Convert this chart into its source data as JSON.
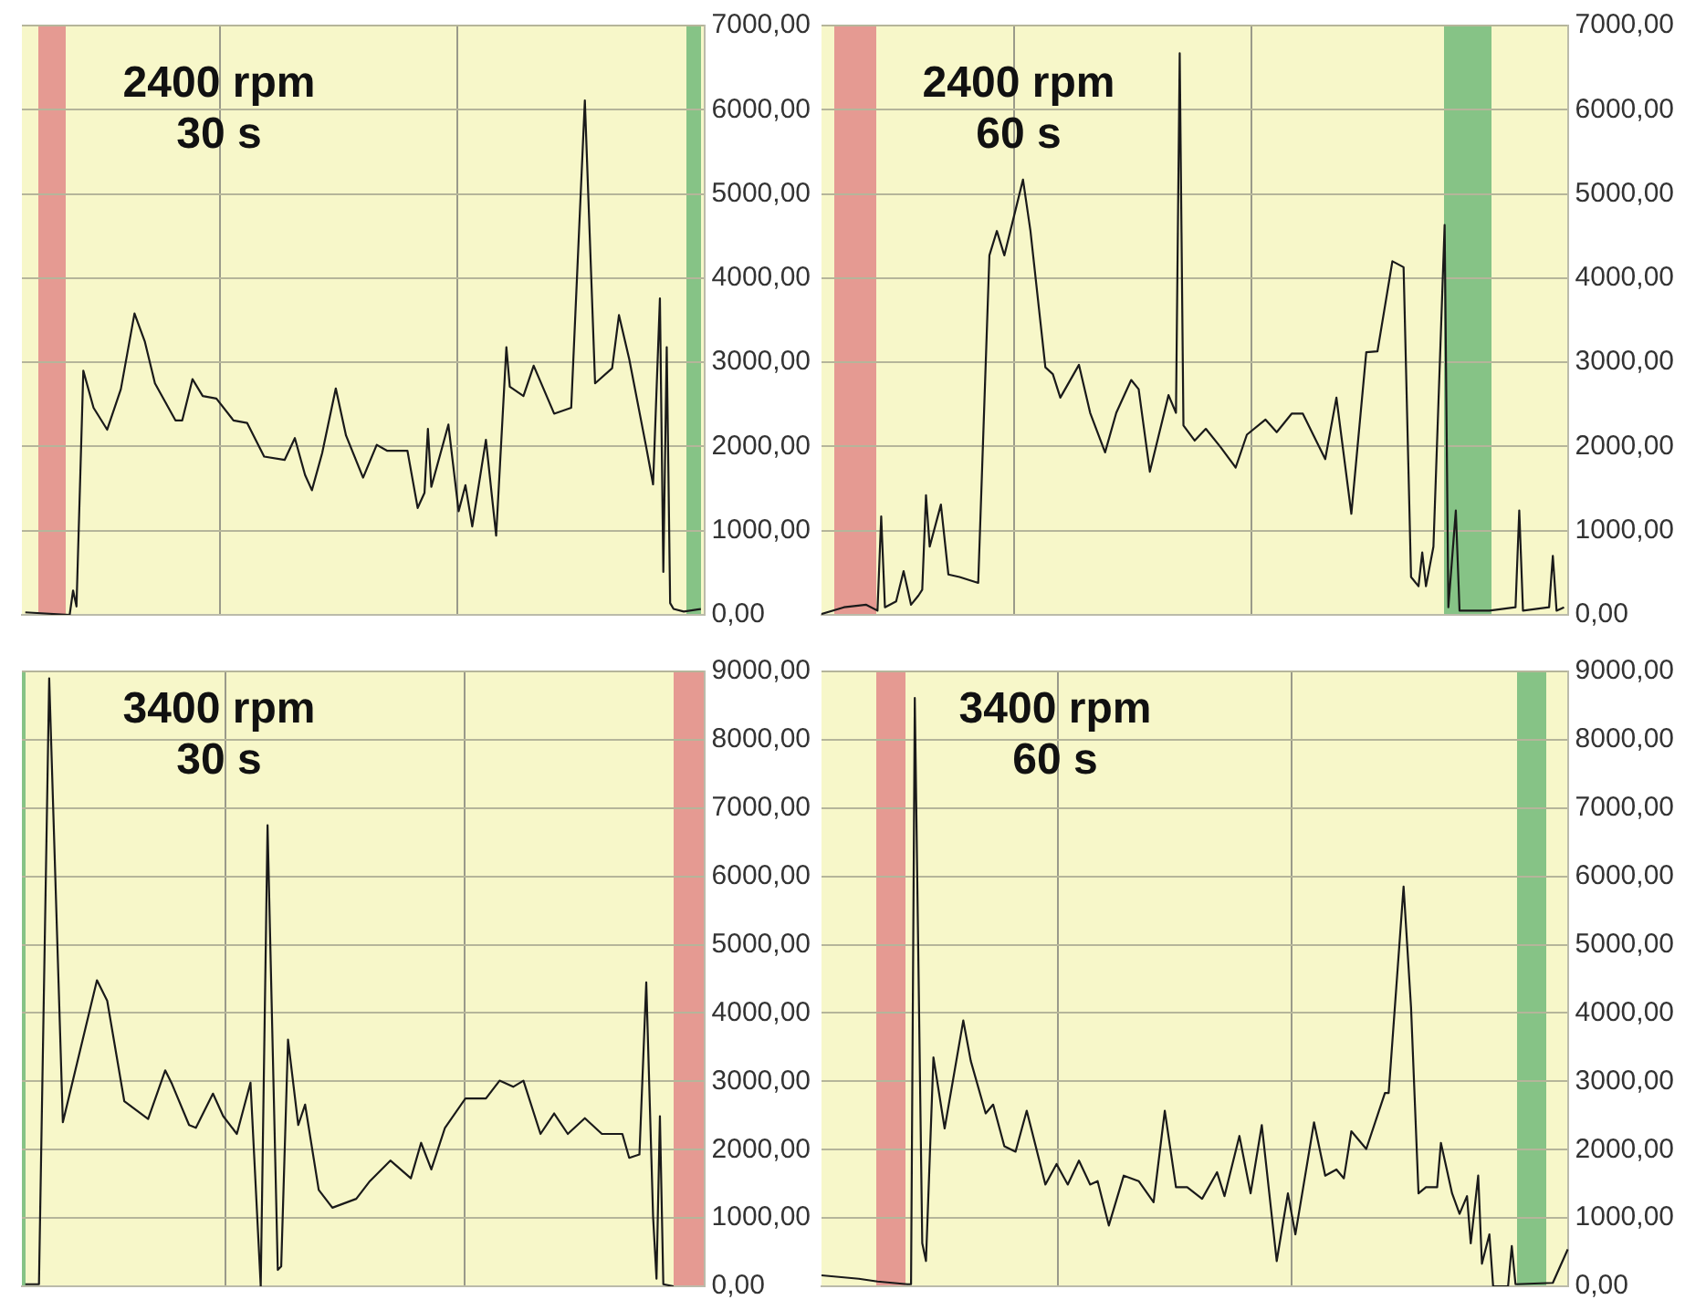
{
  "chart_data": [
    {
      "type": "line",
      "title": "2400 rpm\n30 s",
      "color": "#1a1a1a",
      "grid": "y",
      "tick_labels": "y",
      "ylim": [
        0,
        7000
      ],
      "yticks": [
        {
          "value": 0,
          "label": "0,00"
        },
        {
          "value": 1000,
          "label": "1000,00"
        },
        {
          "value": 2000,
          "label": "2000,00"
        },
        {
          "value": 3000,
          "label": "3000,00"
        },
        {
          "value": 4000,
          "label": "4000,00"
        },
        {
          "value": 5000,
          "label": "5000,00"
        },
        {
          "value": 6000,
          "label": "6000,00"
        },
        {
          "value": 7000,
          "label": "7000,00"
        }
      ],
      "categories": [
        null,
        null,
        null,
        null,
        null,
        null,
        null,
        null,
        null,
        null,
        null,
        null,
        null,
        null,
        null,
        null,
        null,
        null,
        null,
        null,
        null,
        null,
        null,
        null,
        null,
        null,
        null,
        null,
        null,
        null,
        null,
        null,
        null,
        null,
        null,
        null,
        null,
        null,
        null,
        null,
        null,
        null,
        null,
        null,
        null,
        null,
        null,
        null,
        null,
        null,
        null,
        null,
        null,
        null,
        null,
        null,
        null,
        null,
        null,
        null,
        null,
        null,
        null,
        null,
        null,
        null,
        null,
        null,
        null,
        null,
        null,
        null,
        null,
        null,
        null,
        null,
        null,
        null,
        null,
        null,
        null,
        null,
        null,
        null,
        null,
        null,
        null,
        null,
        null,
        null,
        null,
        null,
        null,
        null,
        null,
        null,
        null,
        null,
        null,
        null,
        null,
        null,
        null,
        null,
        null,
        null,
        null,
        null,
        null,
        null,
        null,
        null,
        null,
        null,
        null,
        null,
        null,
        null,
        null,
        null,
        null,
        null,
        null,
        null,
        null,
        null,
        null,
        null,
        null,
        null,
        null,
        null,
        null,
        null,
        null,
        null,
        null,
        null,
        null,
        null,
        null,
        null,
        null,
        null,
        null,
        null,
        null,
        null,
        null,
        null,
        null,
        null,
        null,
        null,
        null,
        null,
        null,
        null,
        null,
        null,
        null,
        null,
        null,
        null,
        null,
        null,
        null,
        null,
        null,
        null,
        null,
        null,
        null,
        null,
        null,
        null,
        null,
        null,
        null,
        null,
        null,
        null,
        null,
        null,
        null,
        null,
        null,
        null,
        null,
        null,
        null,
        null,
        null,
        null,
        null,
        null,
        null,
        null,
        null,
        null,
        null
      ],
      "values": [
        null,
        30,
        null,
        null,
        null,
        null,
        null,
        null,
        null,
        null,
        null,
        null,
        null,
        null,
        0,
        290,
        100,
        null,
        2900,
        null,
        null,
        2460,
        null,
        null,
        null,
        2200,
        null,
        null,
        null,
        2680,
        null,
        null,
        null,
        3580,
        null,
        null,
        3250,
        null,
        null,
        2750,
        null,
        null,
        2530,
        null,
        null,
        2310,
        null,
        2310,
        null,
        null,
        2800,
        null,
        null,
        2600,
        null,
        null,
        null,
        2570,
        null,
        null,
        null,
        null,
        2310,
        null,
        null,
        null,
        2280,
        null,
        null,
        null,
        null,
        1880,
        null,
        null,
        null,
        null,
        null,
        1840,
        null,
        null,
        2100,
        null,
        null,
        1660,
        null,
        1480,
        null,
        null,
        1920,
        null,
        null,
        null,
        2690,
        null,
        null,
        2130,
        null,
        null,
        null,
        null,
        1630,
        null,
        null,
        null,
        2020,
        null,
        null,
        1950,
        null,
        null,
        null,
        null,
        null,
        1950,
        null,
        null,
        1270,
        null,
        1450,
        2210,
        1520,
        null,
        null,
        null,
        null,
        2260,
        null,
        null,
        1230,
        null,
        1540,
        null,
        1050,
        null,
        null,
        null,
        2080,
        null,
        null,
        940,
        null,
        null,
        3180,
        2710,
        null,
        null,
        null,
        2600,
        null,
        null,
        2960,
        null,
        null,
        null,
        null,
        null,
        2390,
        null,
        null,
        null,
        null,
        2460,
        null,
        null,
        null,
        6110,
        null,
        null,
        2750,
        null,
        null,
        null,
        null,
        2930,
        null,
        3560,
        null,
        null,
        3040,
        null,
        null,
        null,
        null,
        1990,
        null,
        1550,
        null,
        3760,
        510,
        3180,
        140,
        70,
        null,
        null,
        40,
        null,
        null,
        null,
        null,
        70,
        null
      ]
    },
    {
      "type": "line",
      "title": "2400 rpm\n60 s",
      "color": "#1a1a1a",
      "grid": "y",
      "tick_labels": "y",
      "ylim": [
        0,
        7000
      ],
      "yticks": [
        {
          "value": 0,
          "label": "0,00"
        },
        {
          "value": 1000,
          "label": "1000,00"
        },
        {
          "value": 2000,
          "label": "2000,00"
        },
        {
          "value": 3000,
          "label": "3000,00"
        },
        {
          "value": 4000,
          "label": "4000,00"
        },
        {
          "value": 5000,
          "label": "5000,00"
        },
        {
          "value": 6000,
          "label": "6000,00"
        },
        {
          "value": 7000,
          "label": "7000,00"
        }
      ],
      "categories": [
        null,
        null,
        null,
        null,
        null,
        null,
        null,
        null,
        null,
        null,
        null,
        null,
        null,
        null,
        null,
        null,
        null,
        null,
        null,
        null,
        null,
        null,
        null,
        null,
        null,
        null,
        null,
        null,
        null,
        null,
        null,
        null,
        null,
        null,
        null,
        null,
        null,
        null,
        null,
        null,
        null,
        null,
        null,
        null,
        null,
        null,
        null,
        null,
        null,
        null,
        null,
        null,
        null,
        null,
        null,
        null,
        null,
        null,
        null,
        null,
        null,
        null,
        null,
        null,
        null,
        null,
        null,
        null,
        null,
        null,
        null,
        null,
        null,
        null,
        null,
        null,
        null,
        null,
        null,
        null,
        null,
        null,
        null,
        null,
        null,
        null,
        null,
        null,
        null,
        null,
        null,
        null,
        null,
        null,
        null,
        null,
        null,
        null,
        null,
        null,
        null,
        null,
        null,
        null,
        null,
        null,
        null,
        null,
        null,
        null,
        null,
        null,
        null,
        null,
        null,
        null,
        null,
        null,
        null,
        null,
        null,
        null,
        null,
        null,
        null,
        null,
        null,
        null,
        null,
        null,
        null,
        null,
        null,
        null,
        null,
        null,
        null,
        null,
        null,
        null,
        null,
        null,
        null,
        null,
        null,
        null,
        null,
        null,
        null,
        null,
        null,
        null,
        null,
        null,
        null,
        null,
        null,
        null,
        null,
        null,
        null,
        null,
        null,
        null,
        null,
        null,
        null,
        null,
        null,
        null,
        null,
        null,
        null,
        null,
        null,
        null,
        null,
        null,
        null,
        null,
        null,
        null,
        null,
        null,
        null,
        null,
        null,
        null,
        null,
        null,
        null,
        null,
        null,
        null,
        null,
        null,
        null,
        null,
        null,
        null,
        null
      ],
      "values": [
        10,
        null,
        null,
        null,
        null,
        null,
        90,
        null,
        null,
        null,
        null,
        null,
        120,
        null,
        null,
        50,
        1170,
        90,
        null,
        null,
        160,
        null,
        520,
        null,
        120,
        null,
        230,
        300,
        1420,
        810,
        null,
        null,
        1310,
        null,
        480,
        null,
        null,
        450,
        null,
        null,
        null,
        null,
        380,
        null,
        null,
        4270,
        null,
        4560,
        null,
        4270,
        null,
        null,
        null,
        null,
        5170,
        null,
        4560,
        null,
        null,
        null,
        2940,
        null,
        2860,
        null,
        2580,
        null,
        null,
        null,
        null,
        2970,
        null,
        null,
        2400,
        null,
        null,
        null,
        1930,
        null,
        null,
        2400,
        null,
        null,
        null,
        2790,
        null,
        2680,
        null,
        null,
        1700,
        null,
        null,
        null,
        null,
        2610,
        null,
        2400,
        6670,
        2250,
        null,
        null,
        2070,
        null,
        null,
        2210,
        null,
        null,
        null,
        1990,
        null,
        null,
        null,
        1750,
        null,
        null,
        2140,
        null,
        null,
        null,
        null,
        2320,
        null,
        null,
        2170,
        null,
        null,
        null,
        2390,
        null,
        null,
        2390,
        null,
        null,
        null,
        null,
        null,
        1850,
        null,
        null,
        2580,
        null,
        null,
        null,
        1200,
        null,
        null,
        null,
        3120,
        null,
        null,
        3130,
        null,
        null,
        null,
        4200,
        null,
        null,
        4130,
        null,
        450,
        null,
        340,
        740,
        340,
        null,
        810,
        null,
        null,
        4630,
        90,
        null,
        1240,
        50,
        null,
        null,
        null,
        null,
        null,
        null,
        null,
        50,
        null,
        null,
        null,
        null,
        null,
        null,
        90,
        1240,
        50,
        null,
        null,
        null,
        null,
        null,
        null,
        90,
        700,
        50,
        null,
        90,
        null
      ]
    },
    {
      "type": "line",
      "title": "3400 rpm\n30 s",
      "color": "#1a1a1a",
      "grid": "y",
      "tick_labels": "y",
      "ylim": [
        0,
        9000
      ],
      "yticks": [
        {
          "value": 0,
          "label": "0,00"
        },
        {
          "value": 1000,
          "label": "1000,00"
        },
        {
          "value": 2000,
          "label": "2000,00"
        },
        {
          "value": 3000,
          "label": "3000,00"
        },
        {
          "value": 4000,
          "label": "4000,00"
        },
        {
          "value": 5000,
          "label": "5000,00"
        },
        {
          "value": 6000,
          "label": "6000,00"
        },
        {
          "value": 7000,
          "label": "7000,00"
        },
        {
          "value": 8000,
          "label": "8000,00"
        },
        {
          "value": 9000,
          "label": "9000,00"
        }
      ],
      "categories": [
        null,
        null,
        null,
        null,
        null,
        null,
        null,
        null,
        null,
        null,
        null,
        null,
        null,
        null,
        null,
        null,
        null,
        null,
        null,
        null,
        null,
        null,
        null,
        null,
        null,
        null,
        null,
        null,
        null,
        null,
        null,
        null,
        null,
        null,
        null,
        null,
        null,
        null,
        null,
        null,
        null,
        null,
        null,
        null,
        null,
        null,
        null,
        null,
        null,
        null,
        null,
        null,
        null,
        null,
        null,
        null,
        null,
        null,
        null,
        null,
        null,
        null,
        null,
        null,
        null,
        null,
        null,
        null,
        null,
        null,
        null,
        null,
        null,
        null,
        null,
        null,
        null,
        null,
        null,
        null,
        null,
        null,
        null,
        null,
        null,
        null,
        null,
        null,
        null,
        null,
        null,
        null,
        null,
        null,
        null,
        null,
        null,
        null,
        null,
        null,
        null,
        null,
        null,
        null,
        null,
        null,
        null,
        null,
        null,
        null,
        null,
        null,
        null,
        null,
        null,
        null,
        null,
        null,
        null,
        null,
        null,
        null,
        null,
        null,
        null,
        null,
        null,
        null,
        null,
        null,
        null,
        null,
        null,
        null,
        null,
        null,
        null,
        null,
        null,
        null,
        null,
        null,
        null,
        null,
        null,
        null,
        null,
        null,
        null,
        null,
        null,
        null,
        null,
        null,
        null,
        null,
        null,
        null,
        null,
        null,
        null,
        null,
        null,
        null,
        null,
        null,
        null,
        null,
        null,
        null,
        null,
        null,
        null,
        null,
        null,
        null,
        null,
        null,
        null,
        null,
        null,
        null,
        null,
        null,
        null,
        null,
        null,
        null,
        null,
        null,
        null,
        null,
        null,
        null,
        null,
        null,
        null,
        null,
        null,
        null,
        null
      ],
      "values": [
        null,
        30,
        null,
        null,
        null,
        30,
        null,
        null,
        8900,
        null,
        null,
        null,
        2400,
        null,
        null,
        null,
        null,
        null,
        null,
        null,
        null,
        null,
        4480,
        null,
        null,
        4180,
        null,
        null,
        null,
        null,
        2710,
        null,
        null,
        null,
        null,
        null,
        null,
        2450,
        null,
        null,
        null,
        null,
        3160,
        null,
        2960,
        null,
        null,
        null,
        null,
        2360,
        null,
        2320,
        null,
        null,
        null,
        null,
        2820,
        null,
        null,
        2490,
        null,
        null,
        null,
        2230,
        null,
        null,
        null,
        2980,
        null,
        null,
        0,
        null,
        6750,
        null,
        null,
        240,
        290,
        null,
        3610,
        null,
        null,
        2360,
        null,
        2660,
        null,
        null,
        null,
        1410,
        null,
        null,
        null,
        1150,
        null,
        null,
        null,
        null,
        null,
        null,
        1280,
        null,
        null,
        null,
        1540,
        null,
        null,
        null,
        null,
        null,
        1840,
        null,
        null,
        null,
        null,
        null,
        1580,
        null,
        null,
        2100,
        null,
        null,
        1710,
        null,
        null,
        null,
        2320,
        null,
        null,
        null,
        null,
        null,
        2750,
        null,
        null,
        null,
        null,
        null,
        2750,
        null,
        null,
        null,
        3010,
        null,
        null,
        null,
        2920,
        null,
        null,
        3010,
        null,
        null,
        null,
        null,
        2230,
        null,
        null,
        null,
        2530,
        null,
        null,
        null,
        2230,
        null,
        null,
        null,
        null,
        2460,
        null,
        null,
        null,
        null,
        2230,
        null,
        null,
        null,
        null,
        null,
        2230,
        null,
        1880,
        null,
        null,
        1930,
        null,
        4450,
        null,
        1020,
        110,
        2490,
        30,
        null,
        null,
        0,
        null,
        null,
        null,
        null,
        null,
        null,
        null,
        null,
        null
      ]
    },
    {
      "type": "line",
      "title": "3400 rpm\n60 s",
      "color": "#1a1a1a",
      "grid": "y",
      "tick_labels": "y",
      "ylim": [
        0,
        9000
      ],
      "yticks": [
        {
          "value": 0,
          "label": "0,00"
        },
        {
          "value": 1000,
          "label": "1000,00"
        },
        {
          "value": 2000,
          "label": "2000,00"
        },
        {
          "value": 3000,
          "label": "3000,00"
        },
        {
          "value": 4000,
          "label": "4000,00"
        },
        {
          "value": 5000,
          "label": "5000,00"
        },
        {
          "value": 6000,
          "label": "6000,00"
        },
        {
          "value": 7000,
          "label": "7000,00"
        },
        {
          "value": 8000,
          "label": "8000,00"
        },
        {
          "value": 9000,
          "label": "9000,00"
        }
      ],
      "categories": [
        null,
        null,
        null,
        null,
        null,
        null,
        null,
        null,
        null,
        null,
        null,
        null,
        null,
        null,
        null,
        null,
        null,
        null,
        null,
        null,
        null,
        null,
        null,
        null,
        null,
        null,
        null,
        null,
        null,
        null,
        null,
        null,
        null,
        null,
        null,
        null,
        null,
        null,
        null,
        null,
        null,
        null,
        null,
        null,
        null,
        null,
        null,
        null,
        null,
        null,
        null,
        null,
        null,
        null,
        null,
        null,
        null,
        null,
        null,
        null,
        null,
        null,
        null,
        null,
        null,
        null,
        null,
        null,
        null,
        null,
        null,
        null,
        null,
        null,
        null,
        null,
        null,
        null,
        null,
        null,
        null,
        null,
        null,
        null,
        null,
        null,
        null,
        null,
        null,
        null,
        null,
        null,
        null,
        null,
        null,
        null,
        null,
        null,
        null,
        null,
        null,
        null,
        null,
        null,
        null,
        null,
        null,
        null,
        null,
        null,
        null,
        null,
        null,
        null,
        null,
        null,
        null,
        null,
        null,
        null,
        null,
        null,
        null,
        null,
        null,
        null,
        null,
        null,
        null,
        null,
        null,
        null,
        null,
        null,
        null,
        null,
        null,
        null,
        null,
        null,
        null,
        null,
        null,
        null,
        null,
        null,
        null,
        null,
        null,
        null,
        null,
        null,
        null,
        null,
        null,
        null,
        null,
        null,
        null,
        null,
        null,
        null,
        null,
        null,
        null,
        null,
        null,
        null,
        null,
        null,
        null,
        null,
        null,
        null,
        null,
        null,
        null,
        null,
        null,
        null,
        null,
        null,
        null,
        null,
        null,
        null,
        null,
        null,
        null,
        null,
        null,
        null,
        null,
        null,
        null,
        null,
        null,
        null,
        null,
        null,
        null
      ],
      "values": [
        160,
        null,
        null,
        null,
        null,
        null,
        null,
        null,
        null,
        null,
        110,
        null,
        null,
        null,
        null,
        70,
        null,
        null,
        null,
        null,
        null,
        null,
        null,
        30,
        30,
        8610,
        null,
        630,
        370,
        null,
        3350,
        null,
        null,
        2310,
        null,
        null,
        null,
        null,
        3890,
        null,
        3300,
        null,
        null,
        null,
        2530,
        null,
        2660,
        null,
        null,
        2050,
        null,
        null,
        1970,
        null,
        null,
        2570,
        null,
        null,
        null,
        null,
        1490,
        null,
        null,
        1790,
        null,
        null,
        1490,
        null,
        null,
        1840,
        null,
        null,
        1490,
        null,
        1540,
        null,
        null,
        890,
        null,
        null,
        null,
        1620,
        null,
        null,
        null,
        1540,
        null,
        null,
        null,
        1230,
        null,
        null,
        2570,
        null,
        null,
        1450,
        null,
        null,
        1450,
        null,
        null,
        null,
        1280,
        null,
        null,
        null,
        1670,
        null,
        1320,
        null,
        null,
        null,
        2200,
        null,
        null,
        1360,
        null,
        null,
        2360,
        null,
        null,
        null,
        370,
        null,
        null,
        1360,
        null,
        760,
        null,
        null,
        null,
        null,
        2400,
        null,
        null,
        1620,
        null,
        null,
        1710,
        null,
        1580,
        null,
        2270,
        null,
        null,
        null,
        2010,
        null,
        null,
        null,
        null,
        2830,
        2830,
        null,
        null,
        null,
        5850,
        null,
        4080,
        null,
        1360,
        null,
        1450,
        null,
        null,
        1450,
        2100,
        null,
        null,
        1360,
        null,
        1060,
        null,
        1320,
        630,
        null,
        1620,
        330,
        null,
        760,
        0,
        null,
        null,
        null,
        0,
        590,
        30,
        null,
        null,
        null,
        null,
        null,
        null,
        null,
        null,
        null,
        50,
        null,
        null,
        null,
        540
      ]
    }
  ]
}
